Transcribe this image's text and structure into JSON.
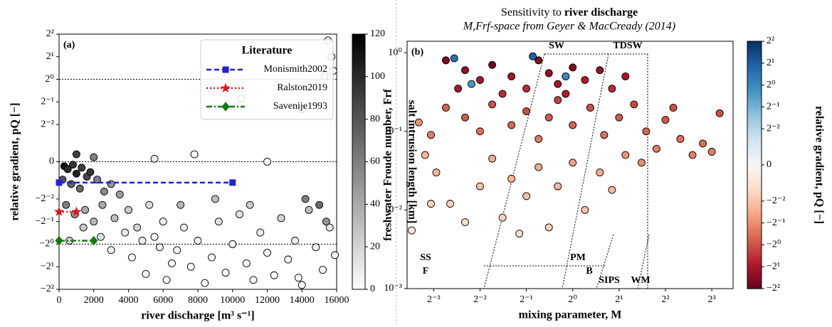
{
  "chart_data": [
    {
      "type": "scatter",
      "panel_label": "(a)",
      "xlabel": "river discharge [m³ s⁻¹]",
      "ylabel": "relative gradient, pQ [−]",
      "xlim": [
        0,
        16000
      ],
      "xticks": [
        0,
        2000,
        4000,
        6000,
        8000,
        10000,
        12000,
        14000,
        16000
      ],
      "ylim": [
        -4,
        4
      ],
      "yscale": "symlog",
      "linthresh": 0.25,
      "yticks": [
        {
          "value": 4,
          "label": "2²"
        },
        {
          "value": 2,
          "label": "2¹"
        },
        {
          "value": 1,
          "label": "2⁰"
        },
        {
          "value": 0.5,
          "label": "2⁻¹"
        },
        {
          "value": 0.25,
          "label": "2⁻²"
        },
        0,
        {
          "value": -0.25,
          "label": "−2⁻²"
        },
        {
          "value": -0.5,
          "label": "−2⁻¹"
        },
        {
          "value": -1,
          "label": "−2⁰"
        },
        {
          "value": -2,
          "label": "−2¹"
        },
        {
          "value": -4,
          "label": "−2²"
        }
      ],
      "hlines": [
        1,
        0,
        -1
      ],
      "x": [
        300,
        500,
        800,
        1000,
        1300,
        1600,
        200,
        700,
        1200,
        1800,
        2200,
        2600,
        3000,
        3500,
        400,
        900,
        1500,
        2000,
        2500,
        3200,
        4000,
        4500,
        5200,
        6000,
        4200,
        5000,
        5500,
        6200,
        6800,
        7200,
        7600,
        8000,
        8400,
        8800,
        9200,
        9600,
        10000,
        10400,
        10800,
        11200,
        11600,
        12000,
        12400,
        12800,
        13200,
        13600,
        14000,
        14400,
        14800,
        15200,
        15600,
        15900,
        14200,
        15000,
        15400,
        13800,
        11000,
        9000,
        7000,
        6500,
        5800,
        4800,
        3800,
        3000,
        2400,
        1400,
        600,
        15500,
        15700,
        15800,
        15300,
        10500,
        14000,
        7800,
        12000,
        5500,
        2000,
        1000
      ],
      "y": [
        -0.03,
        -0.05,
        -0.02,
        -0.08,
        -0.04,
        -0.1,
        -0.12,
        -0.15,
        -0.18,
        -0.07,
        -0.12,
        -0.2,
        -0.15,
        -0.22,
        -0.3,
        -0.4,
        -0.35,
        -0.5,
        -0.3,
        -0.45,
        -0.35,
        -0.6,
        -0.3,
        -0.5,
        -1.5,
        -2.5,
        -0.8,
        -3,
        -1.2,
        -0.6,
        -2,
        -0.9,
        -3.3,
        -1.5,
        -0.5,
        -2.4,
        -1,
        -0.4,
        -1.8,
        -3,
        -0.7,
        -1.3,
        -2.6,
        -0.45,
        -1.6,
        -0.9,
        -3.5,
        -0.35,
        -1.1,
        -2.2,
        -0.6,
        -1.4,
        -0.25,
        -0.3,
        -0.5,
        -2.8,
        -0.3,
        -0.25,
        -0.3,
        -1.8,
        -1.1,
        -0.9,
        -0.7,
        -1.2,
        -0.8,
        -0.6,
        -0.9,
        3.3,
        2.0,
        1.3,
        1.1,
        0.55,
        0.4,
        0.05,
        0.0,
        0.02,
        0.03,
        0.05
      ],
      "c": [
        110,
        100,
        95,
        105,
        90,
        85,
        80,
        75,
        70,
        95,
        60,
        55,
        50,
        45,
        60,
        50,
        40,
        35,
        40,
        30,
        25,
        20,
        15,
        10,
        5,
        3,
        8,
        2,
        5,
        10,
        3,
        8,
        2,
        5,
        15,
        3,
        6,
        12,
        4,
        2,
        10,
        5,
        3,
        20,
        4,
        8,
        1,
        30,
        6,
        3,
        12,
        5,
        60,
        70,
        50,
        2,
        25,
        30,
        35,
        4,
        7,
        9,
        12,
        6,
        15,
        25,
        20,
        10,
        5,
        3,
        8,
        5,
        3,
        5,
        3,
        10,
        60,
        90
      ],
      "colorbar": {
        "label": "salt intrusion length [km]",
        "colormap": "Greys",
        "lim": [
          0,
          120
        ],
        "ticks": [
          0,
          20,
          40,
          60,
          80,
          100,
          120
        ]
      },
      "legend": {
        "title": "Literature",
        "loc": "upper right"
      },
      "series": [
        {
          "name": "Monismith2002",
          "color": "#1f22d4",
          "linestyle": "dashed",
          "marker": "square",
          "x": [
            0,
            10000
          ],
          "values": [
            -0.14,
            -0.14
          ]
        },
        {
          "name": "Ralston2019",
          "color": "#e8101a",
          "linestyle": "dotted",
          "marker": "star",
          "x": [
            0,
            1000
          ],
          "values": [
            -0.37,
            -0.37
          ]
        },
        {
          "name": "Savenije1993",
          "color": "#147a14",
          "linestyle": "dashdot",
          "marker": "diamond",
          "x": [
            0,
            2000
          ],
          "values": [
            -0.9,
            -0.9
          ]
        }
      ]
    },
    {
      "type": "scatter",
      "panel_label": "(b)",
      "title": "Sensitivity to ",
      "title_emphasis": "river discharge",
      "subtitle": "M,Frf-space from Geyer & MacCready (2014)",
      "xlabel": "mixing parameter, M",
      "ylabel": "freshwater Froude number, Frf",
      "xscale": "log",
      "xlim": [
        0.084,
        11
      ],
      "xticks": [
        {
          "value": 0.125,
          "label": "2⁻³"
        },
        {
          "value": 0.25,
          "label": "2⁻²"
        },
        {
          "value": 0.5,
          "label": "2⁻¹"
        },
        {
          "value": 1,
          "label": "2⁰"
        },
        {
          "value": 2,
          "label": "2¹"
        },
        {
          "value": 4,
          "label": "2²"
        },
        {
          "value": 8,
          "label": "2³"
        }
      ],
      "yscale": "log",
      "ylim": [
        0.001,
        1.4
      ],
      "yticks": [
        {
          "value": 0.001,
          "label": "10⁻³"
        },
        {
          "value": 0.01,
          "label": "10⁻²"
        },
        {
          "value": 0.1,
          "label": "10⁻¹"
        },
        {
          "value": 1,
          "label": "10⁰"
        }
      ],
      "x": [
        0.15,
        0.2,
        0.25,
        0.3,
        0.4,
        0.5,
        0.6,
        0.7,
        0.8,
        1.0,
        1.2,
        1.5,
        1.8,
        2.2,
        0.35,
        0.9,
        0.18,
        0.17,
        0.22,
        0.55,
        0.9,
        0.1,
        0.12,
        0.15,
        0.2,
        0.25,
        0.3,
        0.4,
        0.5,
        0.6,
        0.7,
        0.8,
        1.0,
        1.3,
        1.6,
        2.0,
        2.5,
        3,
        3.5,
        4,
        5,
        6,
        7,
        9,
        8,
        4.5,
        2.8,
        0.11,
        0.13,
        0.16,
        0.2,
        0.25,
        0.3,
        0.35,
        0.4,
        0.5,
        0.6,
        0.7,
        0.8,
        1.0,
        1.2,
        1.5,
        1.8,
        0.45,
        0.09,
        2.2,
        0.12
      ],
      "y": [
        0.8,
        0.6,
        0.45,
        0.7,
        0.5,
        0.35,
        0.8,
        0.55,
        0.4,
        0.65,
        0.45,
        0.6,
        0.35,
        0.5,
        0.3,
        0.3,
        0.35,
        0.85,
        0.4,
        0.9,
        0.5,
        0.13,
        0.09,
        0.2,
        0.15,
        0.1,
        0.22,
        0.12,
        0.18,
        0.08,
        0.15,
        0.25,
        0.12,
        0.2,
        0.09,
        0.15,
        0.22,
        0.1,
        0.06,
        0.14,
        0.08,
        0.05,
        0.07,
        0.17,
        0.055,
        0.2,
        0.04,
        0.05,
        0.03,
        0.012,
        0.007,
        0.02,
        0.045,
        0.008,
        0.025,
        0.015,
        0.035,
        0.006,
        0.02,
        0.04,
        0.01,
        0.03,
        0.018,
        0.005,
        0.0055,
        0.05,
        0.012
      ],
      "c": [
        -3,
        -2.5,
        -2,
        -3.5,
        -2,
        -1.5,
        -3,
        -2.5,
        -2,
        -3,
        -1.8,
        -2.5,
        -1.5,
        -2,
        -1.5,
        -1.8,
        -2,
        1.5,
        0.8,
        2,
        1,
        -0.5,
        -0.6,
        -0.8,
        -0.9,
        -0.7,
        -1,
        -0.8,
        -1,
        -0.6,
        -0.9,
        -1.2,
        -0.8,
        -1,
        -0.7,
        -0.9,
        -1.1,
        -0.8,
        -0.6,
        -0.9,
        -0.7,
        -0.6,
        -0.7,
        -1,
        -0.6,
        -1,
        -0.5,
        -0.3,
        -0.3,
        -0.2,
        -0.15,
        -0.25,
        -0.35,
        -0.2,
        -0.3,
        -0.25,
        -0.35,
        -0.2,
        -0.3,
        -0.4,
        -0.25,
        -0.35,
        -0.3,
        -0.15,
        -0.1,
        -0.45,
        -0.2
      ],
      "colorbar": {
        "label": "relative gradient, pQ [−]",
        "colormap": "RdBu",
        "scale": "symlog",
        "linthresh": 0.25,
        "lim": [
          -4,
          4
        ],
        "ticks": [
          {
            "value": 4,
            "label": "2²"
          },
          {
            "value": 2,
            "label": "2¹"
          },
          {
            "value": 1,
            "label": "2⁰"
          },
          {
            "value": 0.5,
            "label": "2⁻¹"
          },
          {
            "value": 0.25,
            "label": "2⁻²"
          },
          0,
          {
            "value": -0.25,
            "label": "−2⁻²"
          },
          {
            "value": -0.5,
            "label": "−2⁻¹"
          },
          {
            "value": -1,
            "label": "−2⁰"
          },
          {
            "value": -2,
            "label": "−2¹"
          },
          {
            "value": -4,
            "label": "−2²"
          }
        ]
      },
      "annotations": [
        "SW",
        "TDSW",
        "SS",
        "F",
        "PM",
        "B",
        "SIPS",
        "WM"
      ]
    }
  ]
}
